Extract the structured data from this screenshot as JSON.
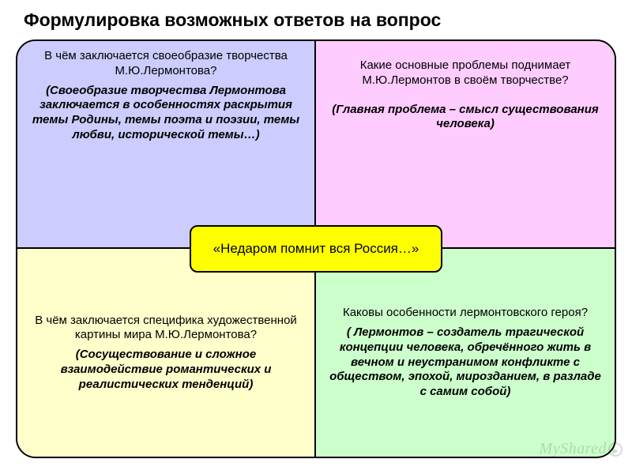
{
  "title": "Формулировка возможных ответов на вопрос",
  "center_label": "«Недаром помнит вся Россия…»",
  "colors": {
    "tl_bg": "#ccccff",
    "tr_bg": "#ffccff",
    "bl_bg": "#ffffcc",
    "br_bg": "#ccffcc",
    "center_bg": "#ffff00",
    "border": "#000000"
  },
  "cells": {
    "tl": {
      "question": "В чём заключается своеобразие творчества М.Ю.Лермонтова?",
      "answer": "(Своеобразие творчества Лермонтова заключается в особенностях раскрытия темы Родины, темы поэта и поэзии, темы любви, исторической темы…)"
    },
    "tr": {
      "question": "Какие основные проблемы поднимает М.Ю.Лермонтов в своём творчестве?",
      "answer": "(Главная проблема – смысл существования человека)"
    },
    "bl": {
      "question": "В чём заключается специфика художественной картины мира М.Ю.Лермонтова?",
      "answer": "(Сосуществование и сложное взаимодействие романтических и реалистических тенденций)"
    },
    "br": {
      "question": "Каковы особенности лермонтовского героя?",
      "answer": "( Лермонтов – создатель трагической концепции человека, обречённого жить в вечном и неустранимом конфликте с обществом, эпохой, мирозданием, в разладе с самим собой)"
    }
  },
  "watermark": "MyShared"
}
